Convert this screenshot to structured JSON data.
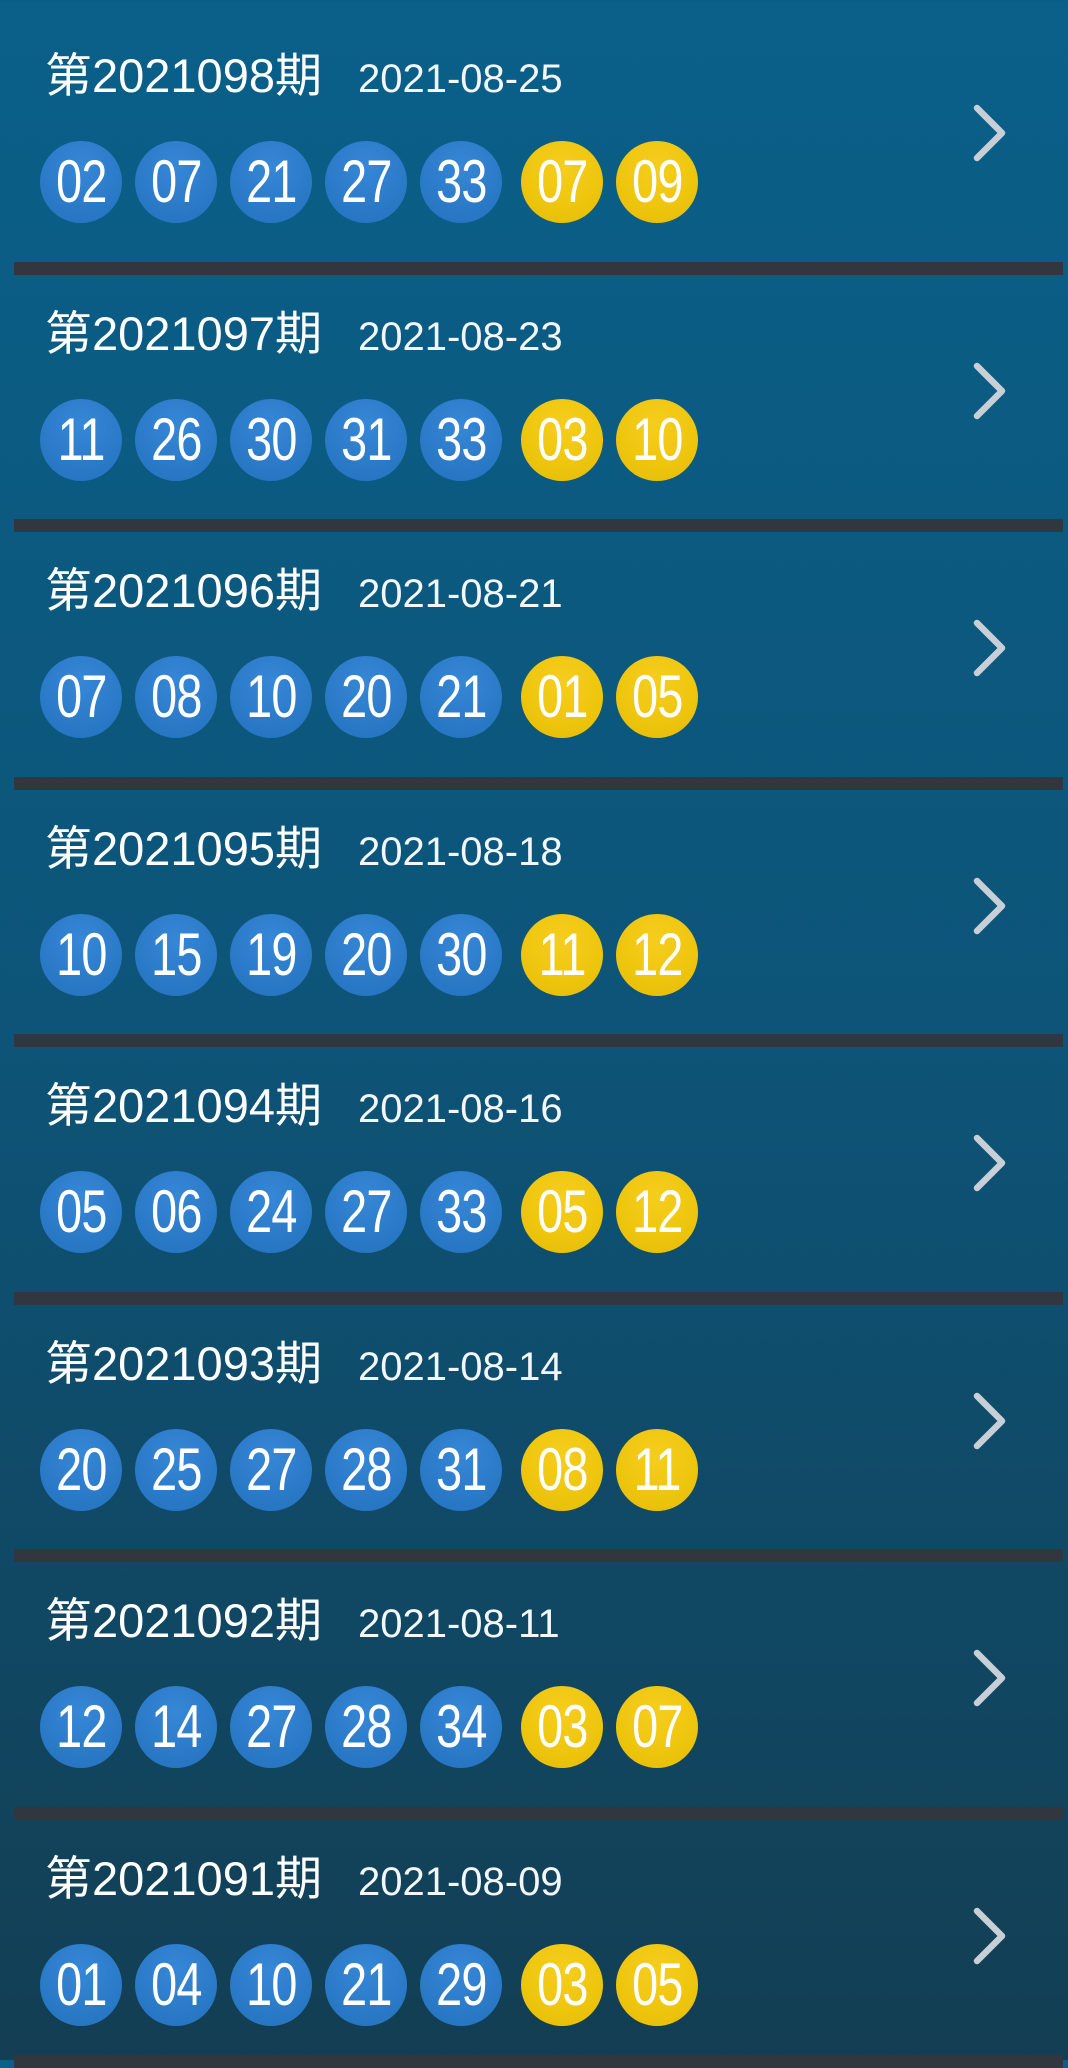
{
  "list": {
    "rows": [
      {
        "period": "第2021098期",
        "date": "2021-08-25",
        "front": [
          "02",
          "07",
          "21",
          "27",
          "33"
        ],
        "back": [
          "07",
          "09"
        ]
      },
      {
        "period": "第2021097期",
        "date": "2021-08-23",
        "front": [
          "11",
          "26",
          "30",
          "31",
          "33"
        ],
        "back": [
          "03",
          "10"
        ]
      },
      {
        "period": "第2021096期",
        "date": "2021-08-21",
        "front": [
          "07",
          "08",
          "10",
          "20",
          "21"
        ],
        "back": [
          "01",
          "05"
        ]
      },
      {
        "period": "第2021095期",
        "date": "2021-08-18",
        "front": [
          "10",
          "15",
          "19",
          "20",
          "30"
        ],
        "back": [
          "11",
          "12"
        ]
      },
      {
        "period": "第2021094期",
        "date": "2021-08-16",
        "front": [
          "05",
          "06",
          "24",
          "27",
          "33"
        ],
        "back": [
          "05",
          "12"
        ]
      },
      {
        "period": "第2021093期",
        "date": "2021-08-14",
        "front": [
          "20",
          "25",
          "27",
          "28",
          "31"
        ],
        "back": [
          "08",
          "11"
        ]
      },
      {
        "period": "第2021092期",
        "date": "2021-08-11",
        "front": [
          "12",
          "14",
          "27",
          "28",
          "34"
        ],
        "back": [
          "03",
          "07"
        ]
      },
      {
        "period": "第2021091期",
        "date": "2021-08-09",
        "front": [
          "01",
          "04",
          "10",
          "21",
          "29"
        ],
        "back": [
          "03",
          "05"
        ]
      }
    ]
  },
  "icons": {
    "chevron_right": "›"
  },
  "colors": {
    "background_top": "#0A6089",
    "background_mid": "#0D5478",
    "background_bottom": "#133E53",
    "front_ball": "#2B7BC9",
    "back_ball": "#EFC60E",
    "divider": "#32363F",
    "chevron": "#C9CFD6",
    "text": "#FFFFFF"
  }
}
